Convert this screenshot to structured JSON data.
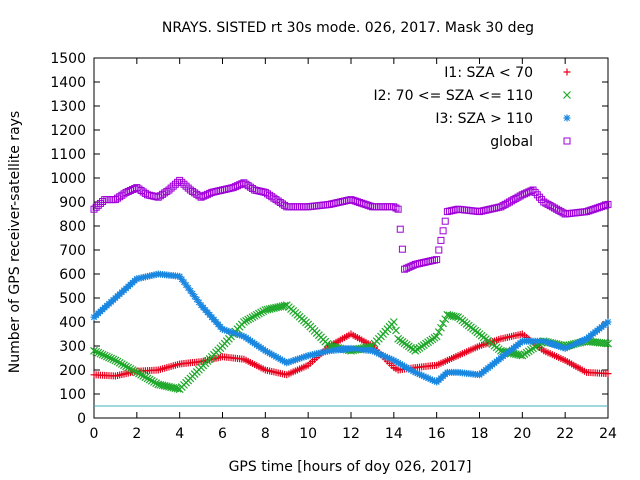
{
  "chart_data": {
    "type": "scatter",
    "title": "NRAYS. SISTED rt 30s mode. 026, 2017. Mask 30 deg",
    "xlabel": "GPS time [hours of doy 026, 2017]",
    "ylabel": "Number of GPS receiver-satellite rays",
    "xlim": [
      0,
      24
    ],
    "ylim": [
      0,
      1500
    ],
    "xticks": [
      "0",
      "2",
      "4",
      "6",
      "8",
      "10",
      "12",
      "14",
      "16",
      "18",
      "20",
      "22",
      "24"
    ],
    "yticks": [
      "0",
      "100",
      "200",
      "300",
      "400",
      "500",
      "600",
      "700",
      "800",
      "900",
      "1000",
      "1100",
      "1200",
      "1300",
      "1400",
      "1500"
    ],
    "grid": false,
    "legend_position": "top-right",
    "reference_line": {
      "y": 50,
      "color": "#3cb0b8"
    },
    "series": [
      {
        "name": "I1: SZA < 70",
        "marker": "+",
        "color": "#e8001c",
        "x": [
          0,
          1,
          2,
          3,
          4,
          5,
          6,
          7,
          8,
          9,
          10,
          11,
          12,
          13,
          14,
          14.2,
          15,
          16,
          17,
          18,
          19,
          20,
          21,
          22,
          23,
          24
        ],
        "y": [
          180,
          175,
          195,
          200,
          225,
          235,
          255,
          245,
          200,
          180,
          220,
          300,
          350,
          300,
          210,
          200,
          210,
          220,
          260,
          300,
          330,
          350,
          280,
          240,
          190,
          185
        ]
      },
      {
        "name": "I2: 70 <= SZA <= 110",
        "marker": "x",
        "color": "#1ea82a",
        "x": [
          0,
          1,
          2,
          3,
          4,
          5,
          6,
          7,
          8,
          9,
          10,
          11,
          12,
          13,
          14,
          14.2,
          15,
          16,
          16.5,
          17,
          18,
          19,
          20,
          21,
          22,
          23,
          24
        ],
        "y": [
          280,
          240,
          190,
          140,
          120,
          210,
          300,
          400,
          450,
          470,
          390,
          300,
          280,
          300,
          400,
          330,
          280,
          340,
          430,
          420,
          350,
          280,
          260,
          320,
          300,
          320,
          310
        ]
      },
      {
        "name": "I3: SZA > 110",
        "marker": "*",
        "color": "#1a87e0",
        "x": [
          0,
          1,
          2,
          3,
          4,
          5,
          6,
          7,
          8,
          9,
          10,
          11,
          12,
          13,
          14,
          14.2,
          15,
          16,
          16.5,
          17,
          18,
          19,
          20,
          21,
          22,
          23,
          24
        ],
        "y": [
          420,
          500,
          580,
          600,
          590,
          470,
          370,
          340,
          280,
          230,
          260,
          280,
          290,
          280,
          240,
          230,
          190,
          150,
          190,
          190,
          180,
          250,
          320,
          320,
          290,
          330,
          400
        ]
      },
      {
        "name": "global",
        "marker": "square",
        "color": "#a000d8",
        "x": [
          0,
          0.5,
          1,
          1.5,
          2,
          2.5,
          3,
          3.5,
          4,
          4.5,
          5,
          5.5,
          6,
          6.5,
          7,
          7.5,
          8,
          8.5,
          9,
          10,
          11,
          12,
          13,
          14,
          14.2,
          14.5,
          15,
          16,
          16.5,
          17,
          18,
          19,
          20,
          20.5,
          21,
          22,
          23,
          24
        ],
        "y": [
          870,
          910,
          910,
          940,
          960,
          930,
          920,
          950,
          990,
          950,
          920,
          940,
          950,
          960,
          980,
          950,
          940,
          910,
          880,
          880,
          890,
          910,
          880,
          880,
          870,
          620,
          640,
          660,
          860,
          870,
          860,
          880,
          930,
          950,
          900,
          850,
          860,
          890
        ]
      }
    ]
  }
}
